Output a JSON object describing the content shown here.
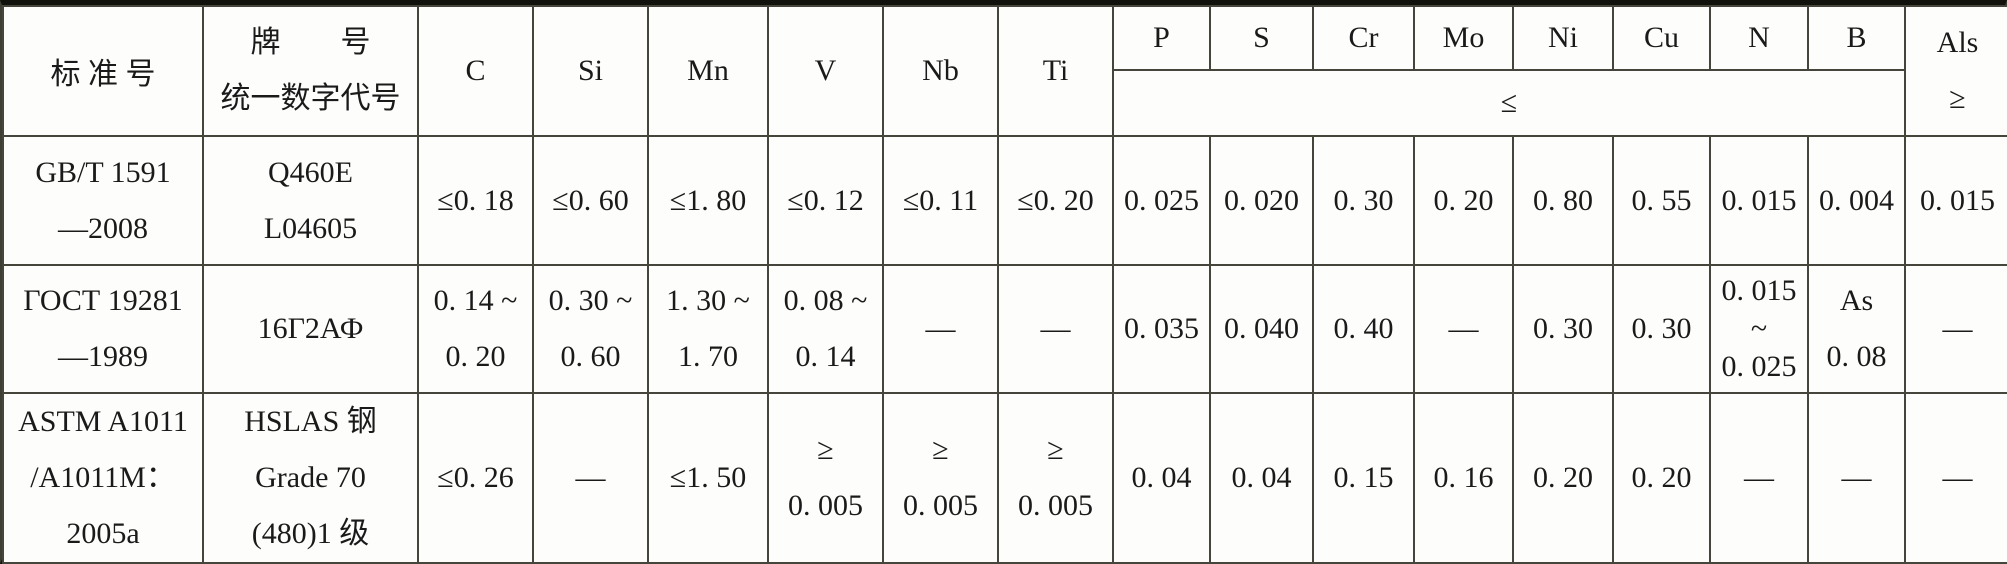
{
  "header": {
    "standard": "标 准 号",
    "grade_lines": [
      "牌　　号",
      "统一数字代号"
    ],
    "elements": [
      "C",
      "Si",
      "Mn",
      "V",
      "Nb",
      "Ti"
    ],
    "max_elements": [
      "P",
      "S",
      "Cr",
      "Mo",
      "Ni",
      "Cu",
      "N",
      "B"
    ],
    "max_symbol": "≤",
    "als_lines": [
      "Als",
      "≥"
    ]
  },
  "rows": [
    {
      "standard": [
        "GB/T 1591",
        "—2008"
      ],
      "grade": [
        "Q460E",
        "L04605"
      ],
      "values": [
        [
          "≤0. 18"
        ],
        [
          "≤0. 60"
        ],
        [
          "≤1. 80"
        ],
        [
          "≤0. 12"
        ],
        [
          "≤0. 11"
        ],
        [
          "≤0. 20"
        ],
        [
          "0. 025"
        ],
        [
          "0. 020"
        ],
        [
          "0. 30"
        ],
        [
          "0. 20"
        ],
        [
          "0. 80"
        ],
        [
          "0. 55"
        ],
        [
          "0. 015"
        ],
        [
          "0. 004"
        ],
        [
          "0. 015"
        ]
      ]
    },
    {
      "standard": [
        "ГОСТ 19281",
        "—1989"
      ],
      "grade": [
        "16Г2АФ"
      ],
      "values": [
        [
          "0. 14 ~",
          "0. 20"
        ],
        [
          "0. 30 ~",
          "0. 60"
        ],
        [
          "1. 30 ~",
          "1. 70"
        ],
        [
          "0. 08 ~",
          "0. 14"
        ],
        [
          "—"
        ],
        [
          "—"
        ],
        [
          "0. 035"
        ],
        [
          "0. 040"
        ],
        [
          "0. 40"
        ],
        [
          "—"
        ],
        [
          "0. 30"
        ],
        [
          "0. 30"
        ],
        [
          "0. 015",
          "~",
          "0. 025"
        ],
        [
          "As",
          "0. 08"
        ],
        [
          "—"
        ]
      ]
    },
    {
      "standard": [
        "ASTM A1011",
        "/A1011M：",
        "2005a"
      ],
      "grade": [
        "HSLAS 钢",
        "Grade 70",
        "(480)1 级"
      ],
      "values": [
        [
          "≤0. 26"
        ],
        [
          "—"
        ],
        [
          "≤1. 50"
        ],
        [
          "≥",
          "0. 005"
        ],
        [
          "≥",
          "0. 005"
        ],
        [
          "≥",
          "0. 005"
        ],
        [
          "0. 04"
        ],
        [
          "0. 04"
        ],
        [
          "0. 15"
        ],
        [
          "0. 16"
        ],
        [
          "0. 20"
        ],
        [
          "0. 20"
        ],
        [
          "—"
        ],
        [
          "—"
        ],
        [
          "—"
        ]
      ]
    }
  ]
}
